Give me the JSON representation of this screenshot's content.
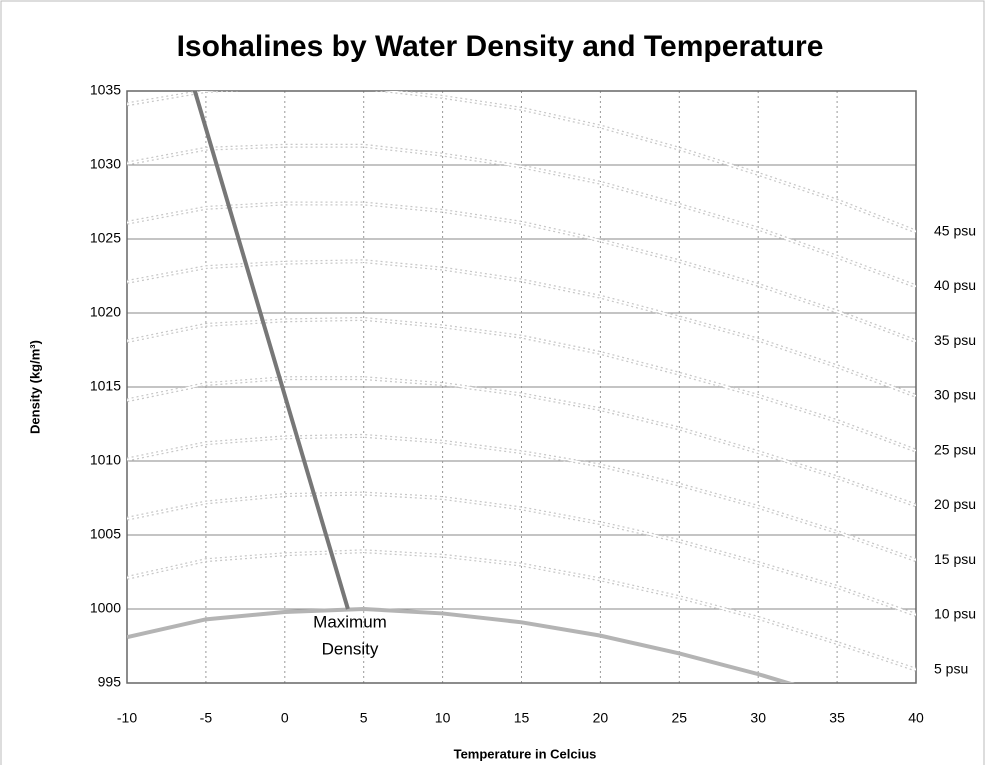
{
  "chart_data": {
    "type": "line",
    "title": "Isohalines  by Water Density and Temperature",
    "xlabel": "Temperature in Celcius",
    "ylabel": "Density (kg/m³)",
    "x": [
      -10,
      -5,
      0,
      5,
      10,
      15,
      20,
      25,
      30,
      35,
      40
    ],
    "series": [
      {
        "name": "5 psu",
        "color": "#c8c8c8",
        "values": [
          1002.1,
          1003.3,
          1003.7,
          1003.9,
          1003.6,
          1003.0,
          1002.0,
          1000.8,
          999.4,
          997.7,
          995.9
        ]
      },
      {
        "name": "10 psu",
        "color": "#c8c8c8",
        "values": [
          1006.1,
          1007.2,
          1007.7,
          1007.8,
          1007.5,
          1006.8,
          1005.8,
          1004.6,
          1003.1,
          1001.5,
          999.6
        ]
      },
      {
        "name": "15 psu",
        "color": "#c8c8c8",
        "values": [
          1010.1,
          1011.2,
          1011.6,
          1011.7,
          1011.3,
          1010.6,
          1009.7,
          1008.4,
          1006.9,
          1005.2,
          1003.3
        ]
      },
      {
        "name": "20 psu",
        "color": "#c8c8c8",
        "values": [
          1014.1,
          1015.2,
          1015.6,
          1015.6,
          1015.2,
          1014.5,
          1013.5,
          1012.2,
          1010.6,
          1008.9,
          1007.0
        ]
      },
      {
        "name": "25 psu",
        "color": "#c8c8c8",
        "values": [
          1018.1,
          1019.2,
          1019.5,
          1019.6,
          1019.1,
          1018.4,
          1017.3,
          1015.9,
          1014.4,
          1012.7,
          1010.7
        ]
      },
      {
        "name": "30 psu",
        "color": "#c8c8c8",
        "values": [
          1022.1,
          1023.1,
          1023.4,
          1023.5,
          1023.0,
          1022.2,
          1021.1,
          1019.7,
          1018.2,
          1016.4,
          1014.4
        ]
      },
      {
        "name": "35 psu",
        "color": "#c8c8c8",
        "values": [
          1026.1,
          1027.1,
          1027.4,
          1027.4,
          1026.9,
          1026.1,
          1024.9,
          1023.5,
          1021.9,
          1020.1,
          1018.1
        ]
      },
      {
        "name": "40 psu",
        "color": "#c8c8c8",
        "values": [
          1030.1,
          1031.1,
          1031.3,
          1031.3,
          1030.7,
          1029.9,
          1028.8,
          1027.3,
          1025.7,
          1023.8,
          1021.8
        ]
      },
      {
        "name": "45 psu",
        "color": "#c8c8c8",
        "values": [
          1034.1,
          1035.0,
          1035.3,
          1035.2,
          1034.6,
          1033.8,
          1032.6,
          1031.1,
          1029.4,
          1027.6,
          1025.5
        ]
      },
      {
        "color": "#b4b4b4",
        "values": [
          998.1,
          999.3,
          999.8,
          1000.0,
          999.7,
          999.1,
          998.2,
          997.0,
          995.6,
          994.0,
          992.2
        ]
      }
    ],
    "max_density_line": {
      "color": "#777777",
      "x": [
        4,
        -5.7
      ],
      "values": [
        1000,
        1035
      ]
    },
    "annotation": [
      "Maximum",
      "Density"
    ],
    "xlim": [
      -10,
      40
    ],
    "xticks": [
      -10,
      -5,
      0,
      5,
      10,
      15,
      20,
      25,
      30,
      35,
      40
    ],
    "ylim": [
      995,
      1035
    ],
    "yticks": [
      995,
      1000,
      1005,
      1010,
      1015,
      1020,
      1025,
      1030,
      1035
    ],
    "grid": true
  }
}
